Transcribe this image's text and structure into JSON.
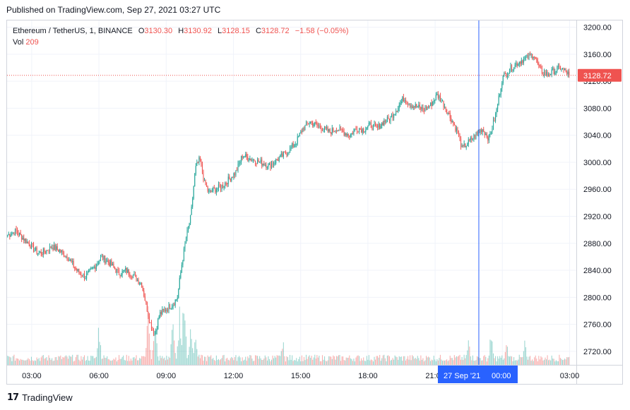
{
  "header": {
    "published": "Published on TradingView.com, Sep 27, 2021 03:27 UTC"
  },
  "legend": {
    "symbol": "Ethereum / TetherUS, 1, BINANCE",
    "open_label": "O",
    "open": "3130.30",
    "high_label": "H",
    "high": "3130.92",
    "low_label": "L",
    "low": "3128.15",
    "close_label": "C",
    "close": "3128.72",
    "change": "−1.58 (−0.05%)",
    "vol_label": "Vol",
    "vol": "209"
  },
  "footer": {
    "brand": "TradingView",
    "logo": "17"
  },
  "colors": {
    "up": "#26a69a",
    "down": "#ef5350",
    "crosshair": "#2962ff",
    "grid": "#f0f3fa",
    "price_badge": "#ef5350"
  },
  "chart_data": {
    "type": "candlestick",
    "y_ticks": [
      "3200.00",
      "3160.00",
      "3120.00",
      "3080.00",
      "3040.00",
      "3000.00",
      "2960.00",
      "2920.00",
      "2880.00",
      "2840.00",
      "2800.00",
      "2760.00",
      "2720.00"
    ],
    "ylim": [
      2700,
      3210
    ],
    "x_ticks": [
      "03:00",
      "06:00",
      "09:00",
      "12:00",
      "15:00",
      "18:00",
      "21:00",
      "00:00",
      "03:00"
    ],
    "x_tick_hours": [
      3,
      6,
      9,
      12,
      15,
      18,
      21,
      24,
      27
    ],
    "xlim_hours": [
      1.9,
      27.3
    ],
    "last_price": "3128.72",
    "last_price_value": 3128.72,
    "crosshair_hour": 22.95,
    "crosshair_date_label": "27 Sep '21",
    "crosshair_time_label": "00:00",
    "price_path": [
      [
        1.9,
        2892
      ],
      [
        2.3,
        2898
      ],
      [
        2.7,
        2885
      ],
      [
        3.0,
        2875
      ],
      [
        3.3,
        2865
      ],
      [
        3.6,
        2868
      ],
      [
        3.9,
        2875
      ],
      [
        4.2,
        2870
      ],
      [
        4.6,
        2860
      ],
      [
        5.0,
        2840
      ],
      [
        5.4,
        2830
      ],
      [
        5.8,
        2845
      ],
      [
        6.1,
        2860
      ],
      [
        6.5,
        2850
      ],
      [
        6.9,
        2835
      ],
      [
        7.2,
        2840
      ],
      [
        7.6,
        2830
      ],
      [
        7.9,
        2820
      ],
      [
        8.1,
        2790
      ],
      [
        8.3,
        2760
      ],
      [
        8.5,
        2745
      ],
      [
        8.7,
        2775
      ],
      [
        8.9,
        2780
      ],
      [
        9.1,
        2785
      ],
      [
        9.3,
        2790
      ],
      [
        9.5,
        2800
      ],
      [
        9.7,
        2850
      ],
      [
        9.9,
        2890
      ],
      [
        10.1,
        2920
      ],
      [
        10.3,
        2990
      ],
      [
        10.5,
        3005
      ],
      [
        10.7,
        2970
      ],
      [
        10.9,
        2955
      ],
      [
        11.2,
        2960
      ],
      [
        11.5,
        2965
      ],
      [
        11.8,
        2975
      ],
      [
        12.1,
        2985
      ],
      [
        12.4,
        3010
      ],
      [
        12.8,
        3005
      ],
      [
        13.2,
        3000
      ],
      [
        13.6,
        2995
      ],
      [
        14.0,
        3005
      ],
      [
        14.4,
        3015
      ],
      [
        14.8,
        3030
      ],
      [
        15.1,
        3050
      ],
      [
        15.4,
        3060
      ],
      [
        15.7,
        3055
      ],
      [
        16.0,
        3050
      ],
      [
        16.3,
        3045
      ],
      [
        16.6,
        3050
      ],
      [
        16.9,
        3045
      ],
      [
        17.2,
        3040
      ],
      [
        17.5,
        3050
      ],
      [
        17.8,
        3048
      ],
      [
        18.1,
        3055
      ],
      [
        18.4,
        3050
      ],
      [
        18.7,
        3060
      ],
      [
        19.0,
        3065
      ],
      [
        19.3,
        3080
      ],
      [
        19.6,
        3095
      ],
      [
        19.9,
        3085
      ],
      [
        20.2,
        3082
      ],
      [
        20.5,
        3078
      ],
      [
        20.8,
        3085
      ],
      [
        21.1,
        3100
      ],
      [
        21.4,
        3085
      ],
      [
        21.7,
        3065
      ],
      [
        22.0,
        3045
      ],
      [
        22.2,
        3020
      ],
      [
        22.5,
        3030
      ],
      [
        22.8,
        3040
      ],
      [
        23.1,
        3050
      ],
      [
        23.4,
        3035
      ],
      [
        23.7,
        3070
      ],
      [
        24.0,
        3125
      ],
      [
        24.4,
        3140
      ],
      [
        24.8,
        3150
      ],
      [
        25.1,
        3155
      ],
      [
        25.4,
        3160
      ],
      [
        25.7,
        3135
      ],
      [
        26.0,
        3130
      ],
      [
        26.3,
        3135
      ],
      [
        26.6,
        3140
      ],
      [
        26.9,
        3132
      ],
      [
        27.0,
        3128.72
      ]
    ],
    "volume_spikes": [
      [
        6.0,
        0.55
      ],
      [
        8.2,
        0.8
      ],
      [
        8.5,
        0.65
      ],
      [
        9.3,
        0.6
      ],
      [
        9.6,
        0.7
      ],
      [
        9.8,
        1.0
      ],
      [
        10.1,
        0.55
      ],
      [
        10.3,
        0.45
      ],
      [
        14.2,
        0.35
      ],
      [
        22.5,
        0.35
      ],
      [
        23.5,
        0.45
      ],
      [
        24.2,
        0.3
      ],
      [
        25.0,
        0.3
      ]
    ]
  }
}
